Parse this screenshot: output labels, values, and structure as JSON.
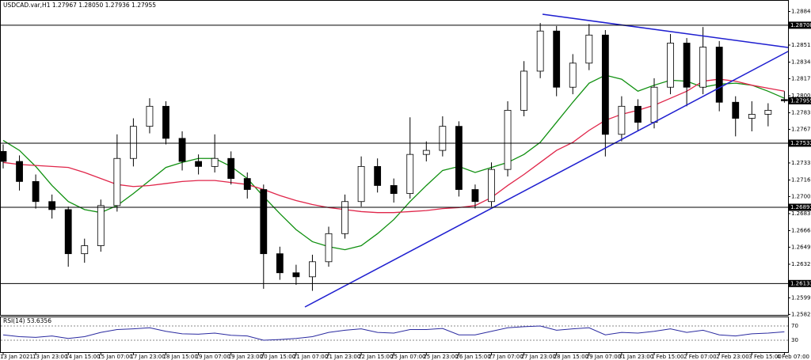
{
  "chart_data": {
    "type": "candlestick",
    "title": "USDCAD.var,H1  1.27967 1.28050 1.27936 1.27955",
    "categories": [
      "13 Jan 2021",
      null,
      "13 Jan 23:00",
      null,
      "14 Jan 15:00",
      null,
      "15 Jan 07:00",
      null,
      "17 Jan 23:00",
      null,
      "18 Jan 15:00",
      null,
      "19 Jan 07:00",
      null,
      "19 Jan 23:00",
      null,
      "20 Jan 15:00",
      null,
      "21 Jan 07:00",
      null,
      "21 Jan 23:00",
      null,
      "22 Jan 15:00",
      null,
      "25 Jan 07:00",
      null,
      "25 Jan 23:00",
      null,
      "26 Jan 15:00",
      null,
      "27 Jan 07:00",
      null,
      "27 Jan 23:00",
      null,
      "28 Jan 15:00",
      null,
      "29 Jan 07:00",
      null,
      "31 Jan 23:00",
      null,
      "1 Feb 15:00",
      null,
      "2 Feb 07:00",
      null,
      "2 Feb 23:00",
      null,
      "3 Feb 15:00",
      null,
      "4 Feb 07:00"
    ],
    "open": [
      1.2745,
      1.2735,
      1.2715,
      1.2695,
      1.2687,
      1.2643,
      1.2651,
      1.2691,
      1.2738,
      1.277,
      1.279,
      1.2758,
      1.2735,
      1.273,
      1.2738,
      1.2718,
      1.2707,
      1.2643,
      1.2624,
      1.262,
      1.2635,
      1.2663,
      1.2695,
      1.273,
      1.2711,
      1.2703,
      1.2742,
      1.2746,
      1.277,
      1.2707,
      1.2695,
      1.2727,
      1.2786,
      1.2825,
      1.2865,
      1.2809,
      1.2833,
      1.2861,
      1.2762,
      1.279,
      1.2774,
      1.2809,
      1.2853,
      1.2809,
      1.2849,
      1.2794,
      1.2778,
      1.2782,
      1.27967
    ],
    "high": [
      1.2752,
      1.2741,
      1.2722,
      1.2702,
      1.269,
      1.2658,
      1.2697,
      1.2762,
      1.2778,
      1.2798,
      1.2795,
      1.2765,
      1.2742,
      1.2762,
      1.2745,
      1.2724,
      1.2712,
      1.265,
      1.2632,
      1.2642,
      1.267,
      1.2702,
      1.274,
      1.2738,
      1.2718,
      1.2779,
      1.2755,
      1.278,
      1.2775,
      1.2712,
      1.2734,
      1.2795,
      1.2835,
      1.2873,
      1.287,
      1.2842,
      1.2872,
      1.2866,
      1.28,
      1.2797,
      1.2818,
      1.2862,
      1.2858,
      1.2869,
      1.2855,
      1.28,
      1.2795,
      1.2793,
      1.2805
    ],
    "low": [
      1.2728,
      1.2706,
      1.2688,
      1.2678,
      1.263,
      1.2634,
      1.2645,
      1.2685,
      1.273,
      1.2763,
      1.2752,
      1.2726,
      1.2722,
      1.2724,
      1.2712,
      1.2698,
      1.2608,
      1.2617,
      1.2612,
      1.2606,
      1.263,
      1.2658,
      1.269,
      1.2704,
      1.2694,
      1.2698,
      1.2735,
      1.274,
      1.27,
      1.2688,
      1.269,
      1.272,
      1.278,
      1.2818,
      1.28,
      1.2802,
      1.2826,
      1.274,
      1.2755,
      1.2765,
      1.2768,
      1.2802,
      1.279,
      1.2802,
      1.2785,
      1.276,
      1.2765,
      1.277,
      1.27936
    ],
    "close": [
      1.2735,
      1.2715,
      1.2695,
      1.2687,
      1.2643,
      1.2651,
      1.2691,
      1.2738,
      1.277,
      1.279,
      1.2758,
      1.2735,
      1.273,
      1.2738,
      1.2718,
      1.2707,
      1.2643,
      1.2624,
      1.262,
      1.2635,
      1.2663,
      1.2695,
      1.273,
      1.2711,
      1.2703,
      1.2742,
      1.2746,
      1.277,
      1.2707,
      1.2695,
      1.2727,
      1.2786,
      1.2825,
      1.2865,
      1.2809,
      1.2833,
      1.2861,
      1.2762,
      1.279,
      1.2774,
      1.2809,
      1.2853,
      1.2809,
      1.2849,
      1.2794,
      1.2778,
      1.2782,
      1.2786,
      1.27955
    ],
    "up_color": "#ffffff",
    "down_color": "#000000",
    "ma_lines": [
      {
        "color": "#109010",
        "values": [
          1.2756,
          1.2746,
          1.273,
          1.2711,
          1.2695,
          1.2687,
          1.2684,
          1.2691,
          1.2703,
          1.2716,
          1.2729,
          1.2734,
          1.2738,
          1.2738,
          1.273,
          1.2718,
          1.27,
          1.2683,
          1.2667,
          1.2655,
          1.265,
          1.2647,
          1.2651,
          1.2663,
          1.2677,
          1.2695,
          1.2711,
          1.2726,
          1.273,
          1.2724,
          1.2729,
          1.2734,
          1.2742,
          1.2754,
          1.2774,
          1.2794,
          1.2813,
          1.2821,
          1.2817,
          1.2805,
          1.2811,
          1.2816,
          1.2815,
          1.2809,
          1.2812,
          1.2813,
          1.2811,
          1.2805,
          1.2798
        ]
      },
      {
        "color": "#e0264a",
        "values": [
          1.2734,
          1.2732,
          1.2731,
          1.273,
          1.2729,
          1.2724,
          1.2718,
          1.2712,
          1.271,
          1.2711,
          1.2713,
          1.2715,
          1.2716,
          1.2716,
          1.2714,
          1.2712,
          1.2707,
          1.2701,
          1.2696,
          1.2692,
          1.2689,
          1.2687,
          1.2685,
          1.2684,
          1.2684,
          1.2685,
          1.2686,
          1.2688,
          1.2689,
          1.2691,
          1.2699,
          1.2711,
          1.2722,
          1.2734,
          1.2746,
          1.2754,
          1.2766,
          1.2776,
          1.2782,
          1.2786,
          1.2791,
          1.2798,
          1.2805,
          1.2815,
          1.2817,
          1.2815,
          1.2811,
          1.2808,
          1.2805
        ]
      }
    ],
    "levels": [
      1.28708,
      1.27532,
      1.26893,
      1.26133
    ],
    "ylim": [
      1.2582,
      1.2892
    ],
    "yticks": [
      1.28845,
      {
        "value": 1.2851,
        "label": "1.28510"
      },
      {
        "value": 1.2834,
        "label": "1.28340"
      },
      1.28175,
      1.28005,
      1.27835,
      {
        "value": 1.2767,
        "label": "1.27670"
      },
      1.27335,
      1.27165,
      {
        "value": 1.27,
        "label": "1.27000"
      },
      {
        "value": 1.2683,
        "label": "1.26830"
      },
      {
        "value": 1.2666,
        "label": "1.26660"
      },
      1.26495,
      1.26325,
      {
        "value": 1.2599,
        "label": "1.25990"
      },
      1.25825
    ],
    "rsi": {
      "title": "RSI(14) 53.6356",
      "color": "#2a2aa0",
      "ylim": [
        0,
        100
      ],
      "yticks": [
        70,
        30
      ],
      "values": [
        45,
        40,
        38,
        42,
        35,
        40,
        52,
        60,
        62,
        65,
        55,
        48,
        47,
        50,
        44,
        42,
        30,
        32,
        35,
        40,
        52,
        58,
        62,
        52,
        50,
        60,
        60,
        63,
        45,
        45,
        55,
        65,
        68,
        70,
        58,
        62,
        65,
        45,
        52,
        50,
        55,
        62,
        52,
        58,
        45,
        42,
        48,
        50,
        53.6356
      ]
    }
  }
}
